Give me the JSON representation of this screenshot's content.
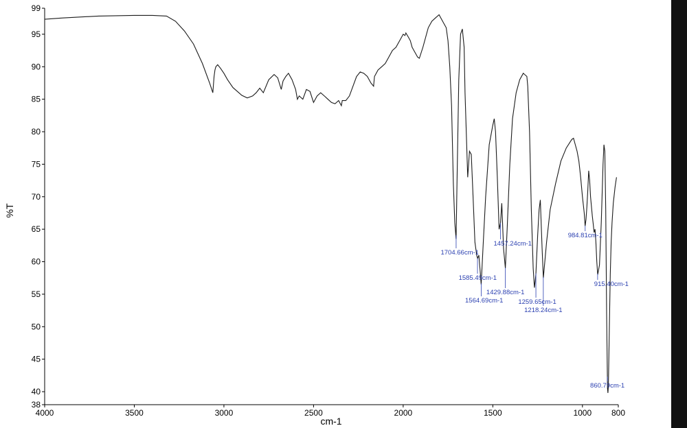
{
  "colors": {
    "spectrum": "#1a1a1a",
    "peak_label": "#2a3fb0",
    "peak_marker": "#2a3fb0",
    "axis": "#000000"
  },
  "chart_data": {
    "type": "line",
    "title": "",
    "xlabel": "cm-1",
    "ylabel": "%T",
    "xlim": [
      4000,
      800
    ],
    "ylim": [
      38,
      99
    ],
    "grid": false,
    "x_ticks": [
      4000,
      3500,
      3000,
      2500,
      2000,
      1500,
      1000,
      800
    ],
    "y_ticks": [
      40,
      45,
      50,
      55,
      60,
      65,
      70,
      75,
      80,
      85,
      90,
      95,
      99
    ],
    "y_extra_tick_labels": [
      "38"
    ],
    "series": [
      {
        "x": [
          4000,
          3900,
          3700,
          3500,
          3400,
          3320,
          3270,
          3220,
          3170,
          3120,
          3080,
          3062,
          3055,
          3050,
          3045,
          3035,
          3020,
          3000,
          2980,
          2950,
          2900,
          2870,
          2840,
          2820,
          2800,
          2780,
          2750,
          2720,
          2700,
          2680,
          2670,
          2655,
          2640,
          2620,
          2600,
          2590,
          2580,
          2560,
          2540,
          2520,
          2500,
          2480,
          2460,
          2440,
          2420,
          2400,
          2380,
          2360,
          2345,
          2340,
          2320,
          2300,
          2280,
          2260,
          2240,
          2220,
          2200,
          2180,
          2165,
          2160,
          2140,
          2120,
          2100,
          2080,
          2060,
          2040,
          2020,
          2000,
          1990,
          1985,
          1970,
          1960,
          1950,
          1940,
          1920,
          1910,
          1890,
          1870,
          1860,
          1840,
          1820,
          1800,
          1780,
          1760,
          1750,
          1740,
          1730,
          1720,
          1712,
          1705,
          1700,
          1690,
          1680,
          1670,
          1660,
          1655,
          1640,
          1630,
          1620,
          1610,
          1600,
          1590,
          1585,
          1578,
          1572,
          1565,
          1555,
          1540,
          1520,
          1500,
          1492,
          1485,
          1475,
          1465,
          1457,
          1450,
          1440,
          1430,
          1420,
          1405,
          1390,
          1370,
          1350,
          1330,
          1310,
          1305,
          1295,
          1285,
          1275,
          1268,
          1260,
          1250,
          1242,
          1235,
          1225,
          1218,
          1200,
          1180,
          1150,
          1120,
          1090,
          1060,
          1050,
          1040,
          1030,
          1020,
          1010,
          1000,
          990,
          985,
          980,
          975,
          970,
          965,
          960,
          955,
          950,
          945,
          940,
          935,
          930,
          925,
          920,
          915,
          905,
          895,
          885,
          880,
          875,
          870,
          865,
          860,
          858,
          855,
          850,
          845,
          840,
          835,
          828,
          818,
          810
        ],
        "y": [
          97.3,
          97.5,
          97.8,
          97.9,
          97.9,
          97.8,
          97.0,
          95.5,
          93.5,
          90.5,
          87.5,
          86.0,
          88.5,
          89.5,
          90.0,
          90.3,
          89.8,
          89.0,
          88.0,
          86.8,
          85.6,
          85.2,
          85.5,
          86.0,
          86.7,
          86.0,
          88.0,
          88.8,
          88.3,
          86.5,
          87.8,
          88.5,
          89.0,
          88.0,
          86.5,
          85.0,
          85.5,
          85.0,
          86.5,
          86.2,
          84.5,
          85.5,
          86.0,
          85.5,
          85.0,
          84.5,
          84.3,
          84.8,
          84.0,
          84.8,
          84.8,
          85.5,
          87.0,
          88.5,
          89.2,
          89.0,
          88.5,
          87.5,
          87.0,
          88.5,
          89.5,
          90.0,
          90.5,
          91.5,
          92.5,
          93.0,
          94.0,
          95.0,
          94.8,
          95.2,
          94.5,
          94.0,
          93.0,
          92.5,
          91.5,
          91.3,
          93.0,
          95.0,
          96.0,
          97.0,
          97.5,
          98.0,
          97.0,
          96.0,
          94.0,
          90.0,
          84.0,
          72.0,
          66.0,
          63.5,
          72.0,
          88.0,
          95.0,
          95.8,
          93.0,
          86.0,
          73.0,
          77.0,
          76.5,
          70.0,
          63.0,
          61.0,
          60.5,
          61.0,
          59.0,
          56.5,
          62.0,
          70.0,
          78.0,
          81.0,
          82.0,
          80.0,
          73.0,
          65.0,
          66.0,
          69.0,
          62.0,
          59.0,
          65.0,
          75.0,
          82.0,
          86.0,
          88.0,
          89.0,
          88.5,
          87.0,
          80.0,
          68.0,
          59.0,
          56.0,
          58.0,
          64.0,
          68.0,
          69.5,
          62.0,
          57.5,
          63.0,
          68.0,
          72.0,
          75.5,
          77.5,
          78.8,
          79.0,
          78.0,
          77.0,
          75.5,
          73.0,
          70.0,
          67.5,
          65.5,
          66.5,
          68.5,
          71.0,
          74.0,
          72.5,
          70.0,
          68.5,
          67.0,
          65.8,
          64.5,
          65.0,
          63.0,
          60.0,
          58.0,
          59.5,
          66.0,
          75.0,
          78.0,
          77.0,
          68.0,
          52.0,
          40.5,
          39.8,
          41.0,
          50.0,
          58.0,
          63.0,
          66.0,
          69.0,
          71.5,
          73.0
        ]
      }
    ],
    "annotations": [
      {
        "x": 1704.66,
        "label": "1704.66cm-1"
      },
      {
        "x": 1585.49,
        "label": "1585.49cm-1"
      },
      {
        "x": 1564.69,
        "label": "1564.69cm-1"
      },
      {
        "x": 1457.24,
        "label": "1457.24cm-1"
      },
      {
        "x": 1429.88,
        "label": "1429.88cm-1"
      },
      {
        "x": 1259.65,
        "label": "1259.65cm-1"
      },
      {
        "x": 1218.24,
        "label": "1218.24cm-1"
      },
      {
        "x": 984.81,
        "label": "984.81cm-1"
      },
      {
        "x": 915.4,
        "label": "915.40cm-1"
      },
      {
        "x": 860.79,
        "label": "860.79cm-1"
      }
    ]
  }
}
